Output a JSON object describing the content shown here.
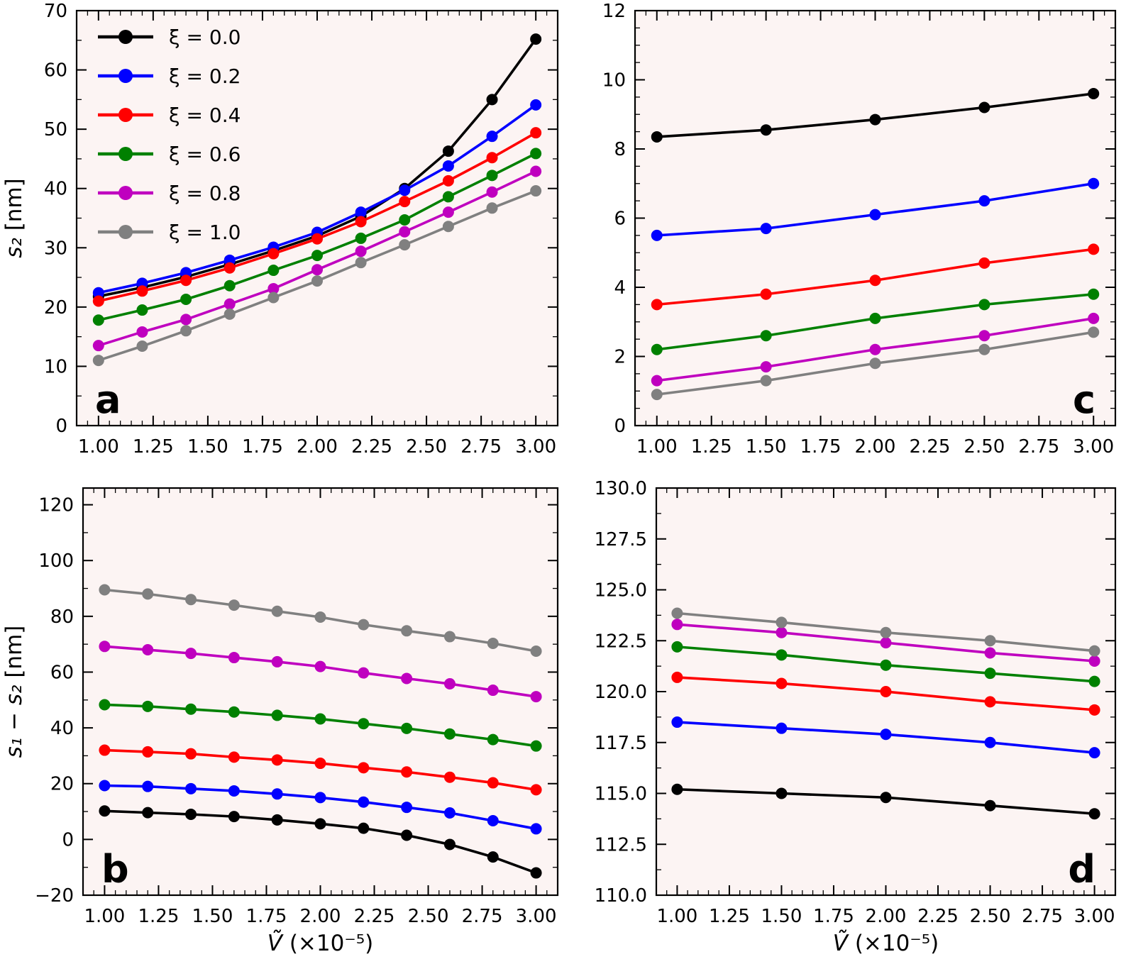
{
  "figure": {
    "background": "#ffffff",
    "axes_facecolor": "#fcf4f3",
    "spine_color": "#000000",
    "xlabel_segments": [
      {
        "text": "Ṽ",
        "italic": true
      },
      {
        "text": " (×10⁻⁵)",
        "italic": false
      }
    ]
  },
  "legend": {
    "position": "upper-left-panel-a",
    "entries": [
      {
        "label": "ξ = 0.0",
        "color": "#000000"
      },
      {
        "label": "ξ = 0.2",
        "color": "#0000ff"
      },
      {
        "label": "ξ = 0.4",
        "color": "#ff0000"
      },
      {
        "label": "ξ = 0.6",
        "color": "#008000"
      },
      {
        "label": "ξ = 0.8",
        "color": "#bf00bf"
      },
      {
        "label": "ξ = 1.0",
        "color": "#808080"
      }
    ]
  },
  "chart_data": [
    {
      "id": "a",
      "type": "line",
      "panel_label": "a",
      "panel_label_corner": "bottom-left",
      "show_legend": true,
      "has_xlabel": false,
      "ylabel_segments": [
        {
          "text": "s₂",
          "italic": true
        },
        {
          "text": " [nm]",
          "italic": false
        }
      ],
      "xlim": [
        0.9,
        3.1
      ],
      "ylim": [
        0,
        70
      ],
      "x_minor_step": 0.05,
      "y_minor_step": 5,
      "xtick_values": [
        1.0,
        1.25,
        1.5,
        1.75,
        2.0,
        2.25,
        2.5,
        2.75,
        3.0
      ],
      "xtick_labels": [
        "1.00",
        "1.25",
        "1.50",
        "1.75",
        "2.00",
        "2.25",
        "2.50",
        "2.75",
        "3.00"
      ],
      "ytick_values": [
        0,
        10,
        20,
        30,
        40,
        50,
        60,
        70
      ],
      "ytick_labels": [
        "0",
        "10",
        "20",
        "30",
        "40",
        "50",
        "60",
        "70"
      ],
      "x": [
        1.0,
        1.2,
        1.4,
        1.6,
        1.8,
        2.0,
        2.2,
        2.4,
        2.6,
        2.8,
        3.0
      ],
      "series": [
        {
          "name": "ξ = 0.0",
          "color": "#000000",
          "values": [
            21.8,
            23.3,
            25.1,
            27.2,
            29.5,
            32.0,
            35.3,
            40.0,
            46.3,
            55.0,
            65.2
          ]
        },
        {
          "name": "ξ = 0.2",
          "color": "#0000ff",
          "values": [
            22.4,
            24.0,
            25.8,
            27.9,
            30.1,
            32.6,
            36.0,
            39.7,
            43.8,
            48.8,
            54.1
          ]
        },
        {
          "name": "ξ = 0.4",
          "color": "#ff0000",
          "values": [
            21.0,
            22.7,
            24.5,
            26.6,
            29.0,
            31.5,
            34.4,
            37.8,
            41.3,
            45.2,
            49.4
          ]
        },
        {
          "name": "ξ = 0.6",
          "color": "#008000",
          "values": [
            17.8,
            19.5,
            21.3,
            23.6,
            26.2,
            28.7,
            31.6,
            34.7,
            38.6,
            42.2,
            45.9
          ]
        },
        {
          "name": "ξ = 0.8",
          "color": "#bf00bf",
          "values": [
            13.5,
            15.8,
            17.9,
            20.5,
            23.1,
            26.3,
            29.4,
            32.7,
            36.0,
            39.4,
            42.9
          ]
        },
        {
          "name": "ξ = 1.0",
          "color": "#808080",
          "values": [
            11.0,
            13.4,
            16.0,
            18.8,
            21.6,
            24.4,
            27.5,
            30.5,
            33.6,
            36.7,
            39.6
          ]
        }
      ]
    },
    {
      "id": "b",
      "type": "line",
      "panel_label": "b",
      "panel_label_corner": "bottom-left",
      "show_legend": false,
      "has_xlabel": true,
      "ylabel_segments": [
        {
          "text": "s₁ − s₂",
          "italic": true
        },
        {
          "text": " [nm]",
          "italic": false
        }
      ],
      "xlim": [
        0.9,
        3.1
      ],
      "ylim": [
        -20,
        126
      ],
      "x_minor_step": 0.05,
      "y_minor_step": 10,
      "xtick_values": [
        1.0,
        1.25,
        1.5,
        1.75,
        2.0,
        2.25,
        2.5,
        2.75,
        3.0
      ],
      "xtick_labels": [
        "1.00",
        "1.25",
        "1.50",
        "1.75",
        "2.00",
        "2.25",
        "2.50",
        "2.75",
        "3.00"
      ],
      "ytick_values": [
        -20,
        0,
        20,
        40,
        60,
        80,
        100,
        120
      ],
      "ytick_labels": [
        "−20",
        "0",
        "20",
        "40",
        "60",
        "80",
        "100",
        "120"
      ],
      "x": [
        1.0,
        1.2,
        1.4,
        1.6,
        1.8,
        2.0,
        2.2,
        2.4,
        2.6,
        2.8,
        3.0
      ],
      "series": [
        {
          "name": "ξ = 0.0",
          "color": "#000000",
          "values": [
            10.2,
            9.6,
            9.0,
            8.2,
            7.0,
            5.6,
            4.0,
            1.5,
            -1.8,
            -6.3,
            -12.0
          ]
        },
        {
          "name": "ξ = 0.2",
          "color": "#0000ff",
          "values": [
            19.3,
            19.0,
            18.2,
            17.4,
            16.3,
            15.0,
            13.4,
            11.5,
            9.5,
            6.7,
            3.8
          ]
        },
        {
          "name": "ξ = 0.4",
          "color": "#ff0000",
          "values": [
            32.0,
            31.4,
            30.7,
            29.5,
            28.5,
            27.3,
            25.7,
            24.2,
            22.3,
            20.3,
            17.8
          ]
        },
        {
          "name": "ξ = 0.6",
          "color": "#008000",
          "values": [
            48.3,
            47.7,
            46.7,
            45.7,
            44.5,
            43.2,
            41.5,
            39.8,
            37.8,
            35.8,
            33.5
          ]
        },
        {
          "name": "ξ = 0.8",
          "color": "#bf00bf",
          "values": [
            69.2,
            68.0,
            66.7,
            65.2,
            63.7,
            62.0,
            59.7,
            57.7,
            55.8,
            53.5,
            51.2
          ]
        },
        {
          "name": "ξ = 1.0",
          "color": "#808080",
          "values": [
            89.5,
            88.0,
            86.0,
            84.0,
            81.8,
            79.7,
            77.0,
            74.8,
            72.7,
            70.3,
            67.5
          ]
        }
      ]
    },
    {
      "id": "c",
      "type": "line",
      "panel_label": "c",
      "panel_label_corner": "bottom-right",
      "show_legend": false,
      "has_xlabel": false,
      "ylabel_segments": [],
      "xlim": [
        0.9,
        3.1
      ],
      "ylim": [
        0,
        12
      ],
      "x_minor_step": 0.05,
      "y_minor_step": 0.5,
      "xtick_values": [
        1.0,
        1.25,
        1.5,
        1.75,
        2.0,
        2.25,
        2.5,
        2.75,
        3.0
      ],
      "xtick_labels": [
        "1.00",
        "1.25",
        "1.50",
        "1.75",
        "2.00",
        "2.25",
        "2.50",
        "2.75",
        "3.00"
      ],
      "ytick_values": [
        0,
        2,
        4,
        6,
        8,
        10,
        12
      ],
      "ytick_labels": [
        "0",
        "2",
        "4",
        "6",
        "8",
        "10",
        "12"
      ],
      "x": [
        1.0,
        1.5,
        2.0,
        2.5,
        3.0
      ],
      "series": [
        {
          "name": "ξ = 0.0",
          "color": "#000000",
          "values": [
            8.35,
            8.55,
            8.85,
            9.2,
            9.6
          ]
        },
        {
          "name": "ξ = 0.2",
          "color": "#0000ff",
          "values": [
            5.5,
            5.7,
            6.1,
            6.5,
            7.0
          ]
        },
        {
          "name": "ξ = 0.4",
          "color": "#ff0000",
          "values": [
            3.5,
            3.8,
            4.2,
            4.7,
            5.1
          ]
        },
        {
          "name": "ξ = 0.6",
          "color": "#008000",
          "values": [
            2.2,
            2.6,
            3.1,
            3.5,
            3.8
          ]
        },
        {
          "name": "ξ = 0.8",
          "color": "#bf00bf",
          "values": [
            1.3,
            1.7,
            2.2,
            2.6,
            3.1
          ]
        },
        {
          "name": "ξ = 1.0",
          "color": "#808080",
          "values": [
            0.9,
            1.3,
            1.8,
            2.2,
            2.7
          ]
        }
      ]
    },
    {
      "id": "d",
      "type": "line",
      "panel_label": "d",
      "panel_label_corner": "bottom-right",
      "show_legend": false,
      "has_xlabel": true,
      "ylabel_segments": [],
      "xlim": [
        0.9,
        3.1
      ],
      "ylim": [
        110,
        130
      ],
      "x_minor_step": 0.05,
      "y_minor_step": 1.25,
      "xtick_values": [
        1.0,
        1.25,
        1.5,
        1.75,
        2.0,
        2.25,
        2.5,
        2.75,
        3.0
      ],
      "xtick_labels": [
        "1.00",
        "1.25",
        "1.50",
        "1.75",
        "2.00",
        "2.25",
        "2.50",
        "2.75",
        "3.00"
      ],
      "ytick_values": [
        110.0,
        112.5,
        115.0,
        117.5,
        120.0,
        122.5,
        125.0,
        127.5,
        130.0
      ],
      "ytick_labels": [
        "110.0",
        "112.5",
        "115.0",
        "117.5",
        "120.0",
        "122.5",
        "125.0",
        "127.5",
        "130.0"
      ],
      "x": [
        1.0,
        1.5,
        2.0,
        2.5,
        3.0
      ],
      "series": [
        {
          "name": "ξ = 0.0",
          "color": "#000000",
          "values": [
            115.2,
            115.0,
            114.8,
            114.4,
            114.0
          ]
        },
        {
          "name": "ξ = 0.2",
          "color": "#0000ff",
          "values": [
            118.5,
            118.2,
            117.9,
            117.5,
            117.0
          ]
        },
        {
          "name": "ξ = 0.4",
          "color": "#ff0000",
          "values": [
            120.7,
            120.4,
            120.0,
            119.5,
            119.1
          ]
        },
        {
          "name": "ξ = 0.6",
          "color": "#008000",
          "values": [
            122.2,
            121.8,
            121.3,
            120.9,
            120.5
          ]
        },
        {
          "name": "ξ = 0.8",
          "color": "#bf00bf",
          "values": [
            123.3,
            122.9,
            122.4,
            121.9,
            121.5
          ]
        },
        {
          "name": "ξ = 1.0",
          "color": "#808080",
          "values": [
            123.85,
            123.4,
            122.9,
            122.5,
            122.0
          ]
        }
      ]
    }
  ]
}
